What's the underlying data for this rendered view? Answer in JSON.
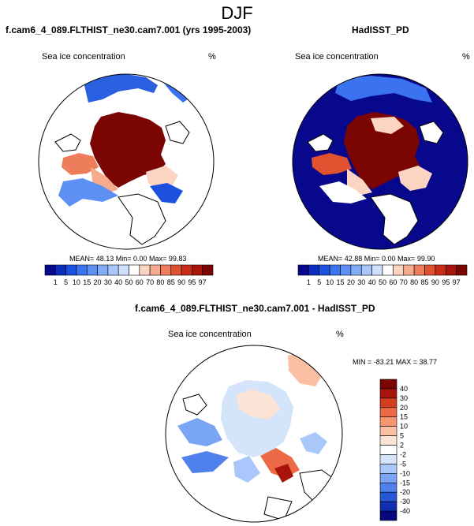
{
  "page_title": "DJF",
  "panels": {
    "left": {
      "heading": "f.cam6_4_089.FLTHIST_ne30.cam7.001 (yrs 1995-2003)",
      "variable": "Sea ice concentration",
      "units": "%",
      "stats": {
        "mean": "48.13",
        "min": "0.00",
        "max": "99.83"
      },
      "stats_line": "MEAN=  48.13  Min=   0.00  Max=  99.83"
    },
    "right": {
      "heading": "HadISST_PD",
      "variable": "Sea ice concentration",
      "units": "%",
      "stats": {
        "mean": "42.88",
        "min": "0.00",
        "max": "99.90"
      },
      "stats_line": "MEAN=  42.88  Min=   0.00  Max=  99.90"
    },
    "diff": {
      "heading": "f.cam6_4_089.FLTHIST_ne30.cam7.001 - HadISST_PD",
      "variable": "Sea ice concentration",
      "units": "%",
      "stats": {
        "min": "-83.21",
        "max": "38.77"
      },
      "stats_line": "MIN = -83.21 MAX =  38.77"
    }
  },
  "colorbar_top": {
    "labels": [
      "1",
      "5",
      "10",
      "15",
      "20",
      "30",
      "40",
      "50",
      "60",
      "70",
      "80",
      "85",
      "90",
      "95",
      "97"
    ],
    "colors": [
      "#08088c",
      "#0a2dbd",
      "#1c51e0",
      "#3a72ef",
      "#5e90f4",
      "#83acf7",
      "#a9c7fa",
      "#cfe0fc",
      "#ffffff",
      "#fbd4c2",
      "#f6ab8e",
      "#ee7d5c",
      "#e0512f",
      "#c92d17",
      "#a8130b",
      "#7a0503"
    ]
  },
  "colorbar_diff": {
    "labels": [
      "40",
      "30",
      "20",
      "15",
      "10",
      "5",
      "2",
      "-2",
      "-5",
      "-10",
      "-15",
      "-20",
      "-30",
      "-40"
    ],
    "colors": [
      "#7a0503",
      "#a8130b",
      "#d43d1f",
      "#ec6a45",
      "#f6966f",
      "#fbc0a3",
      "#fde3d6",
      "#ffffff",
      "#d4e4fb",
      "#a9c7fa",
      "#7aa4f4",
      "#4f80ec",
      "#2657d6",
      "#0e30b0",
      "#07087e"
    ]
  }
}
